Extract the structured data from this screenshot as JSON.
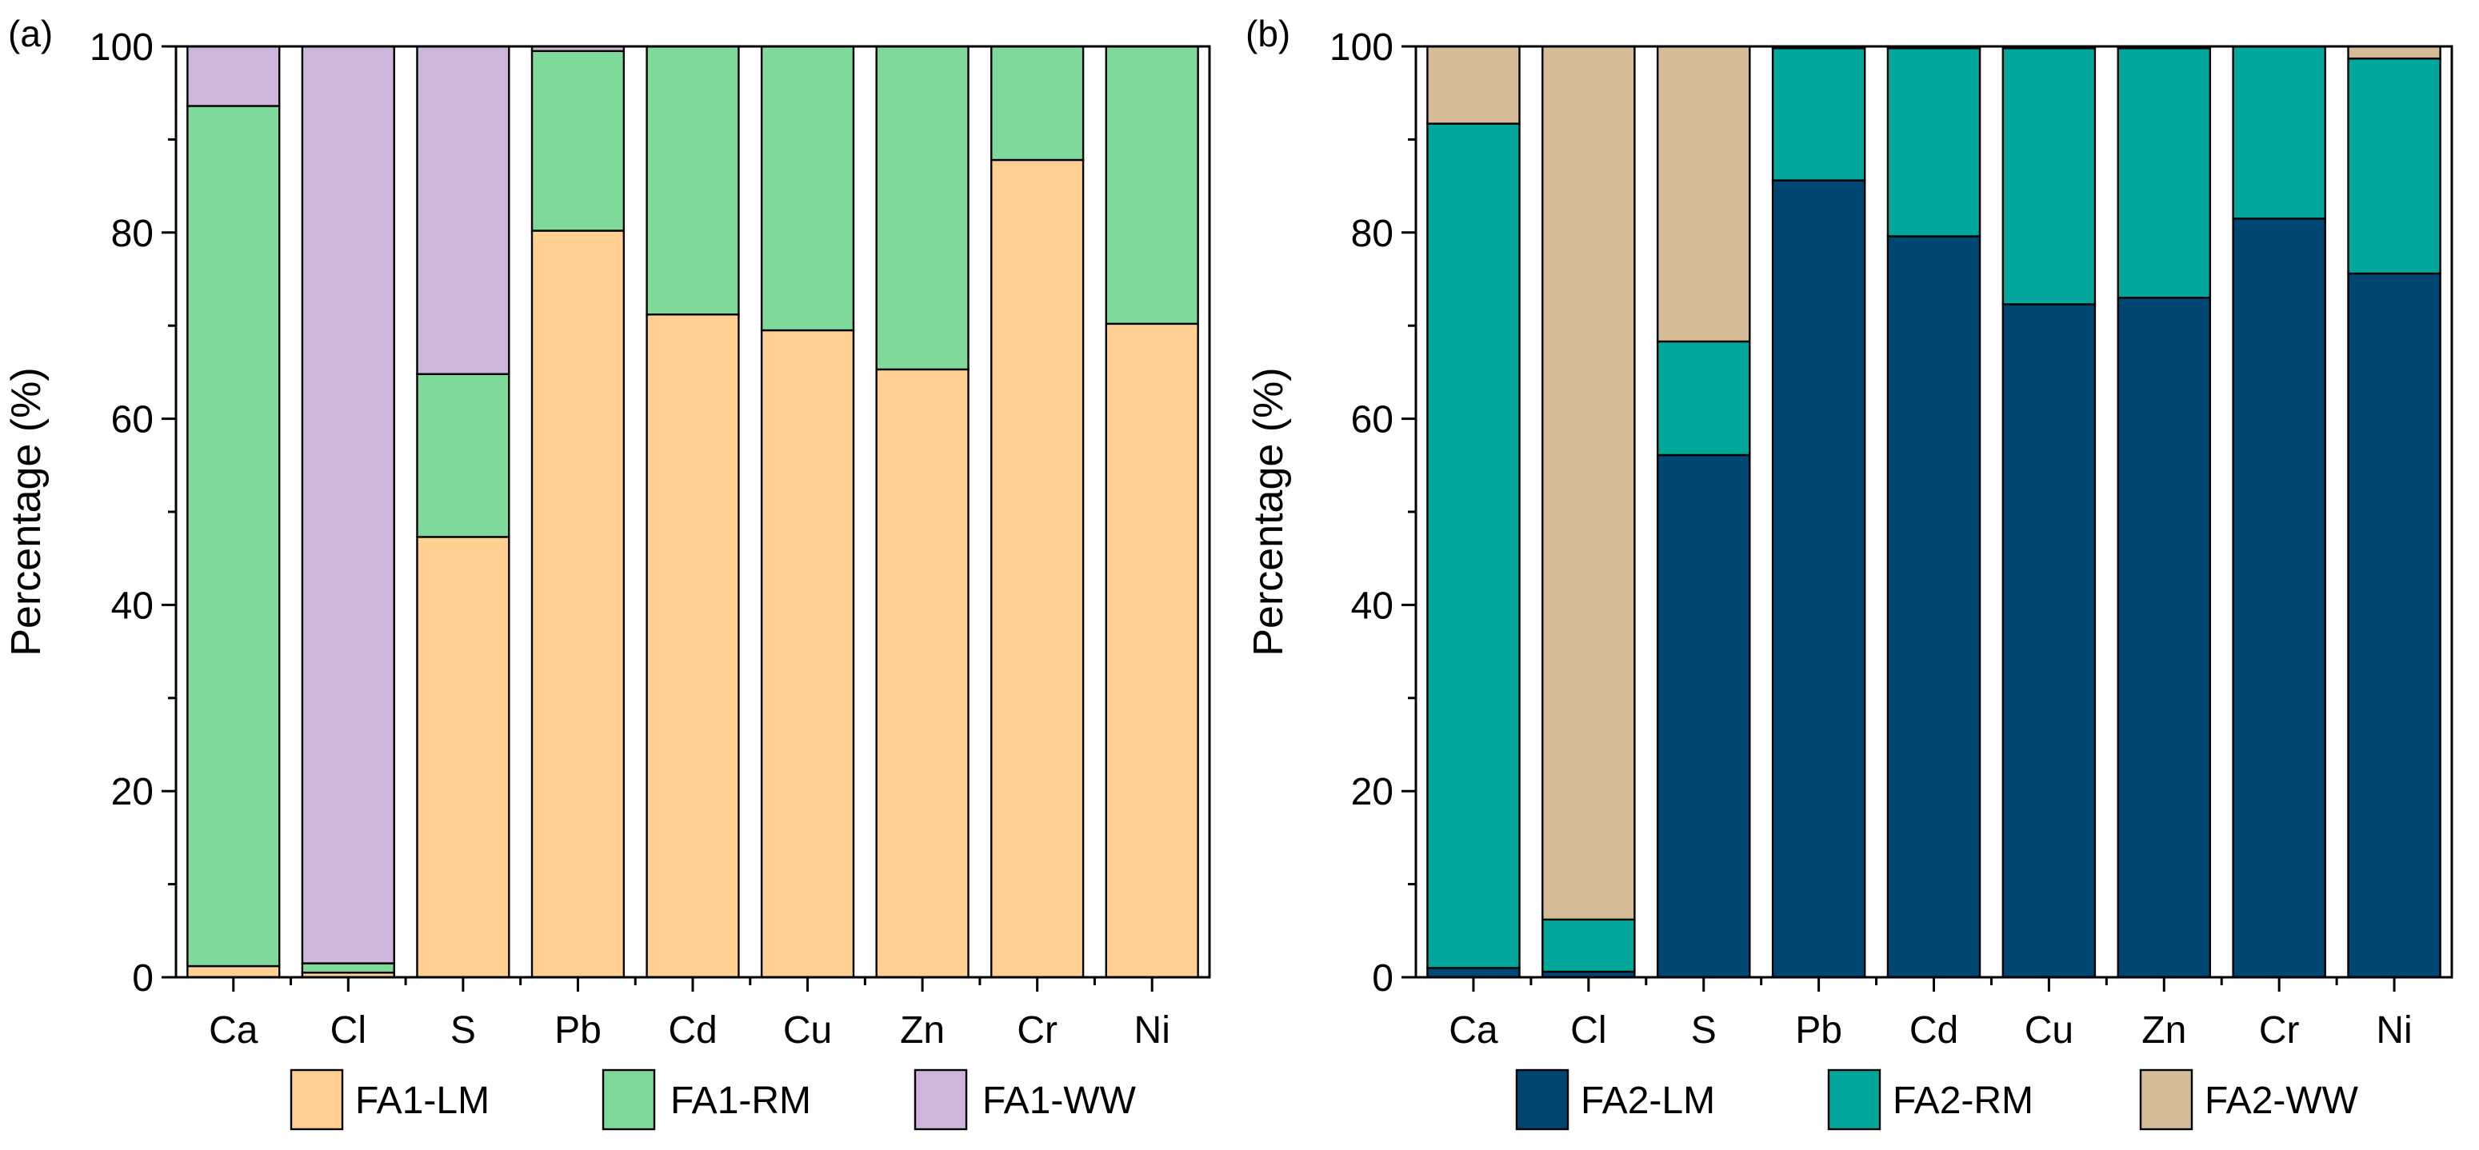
{
  "chart_data": [
    {
      "panel_label": "(a)",
      "type": "bar",
      "stacked": true,
      "percent_stacked": true,
      "ylabel": "Percentage (%)",
      "xlabel": "",
      "ylim": [
        0,
        100
      ],
      "yticks": [
        0,
        20,
        40,
        60,
        80,
        100
      ],
      "grid": false,
      "legend_position": "bottom",
      "categories": [
        "Ca",
        "Cl",
        "S",
        "Pb",
        "Cd",
        "Cu",
        "Zn",
        "Cr",
        "Ni"
      ],
      "series": [
        {
          "name": "FA1-LM",
          "color": "#FFD092",
          "values": [
            1.2,
            0.5,
            47.3,
            80.2,
            71.2,
            69.5,
            65.3,
            87.8,
            70.2
          ]
        },
        {
          "name": "FA1-RM",
          "color": "#7FD99A",
          "values": [
            92.4,
            1.0,
            17.5,
            19.3,
            28.8,
            30.5,
            34.7,
            12.2,
            29.8
          ]
        },
        {
          "name": "FA1-WW",
          "color": "#CDB6DA",
          "values": [
            6.4,
            98.5,
            35.2,
            0.5,
            0.0,
            0.0,
            0.0,
            0.0,
            0.0
          ]
        }
      ]
    },
    {
      "panel_label": "(b)",
      "type": "bar",
      "stacked": true,
      "percent_stacked": true,
      "ylabel": "Percentage (%)",
      "xlabel": "",
      "ylim": [
        0,
        100
      ],
      "yticks": [
        0,
        20,
        40,
        60,
        80,
        100
      ],
      "grid": false,
      "legend_position": "bottom",
      "categories": [
        "Ca",
        "Cl",
        "S",
        "Pb",
        "Cd",
        "Cu",
        "Zn",
        "Cr",
        "Ni"
      ],
      "series": [
        {
          "name": "FA2-LM",
          "color": "#004672",
          "values": [
            1.0,
            0.6,
            56.1,
            85.6,
            79.6,
            72.3,
            73.0,
            81.5,
            75.6
          ]
        },
        {
          "name": "FA2-RM",
          "color": "#00A79A",
          "values": [
            90.7,
            5.6,
            12.2,
            14.2,
            20.2,
            27.5,
            26.8,
            18.5,
            23.1
          ]
        },
        {
          "name": "FA2-WW",
          "color": "#D4BC98",
          "values": [
            8.3,
            93.8,
            31.7,
            0.2,
            0.2,
            0.2,
            0.2,
            0.0,
            1.3
          ]
        }
      ]
    }
  ]
}
